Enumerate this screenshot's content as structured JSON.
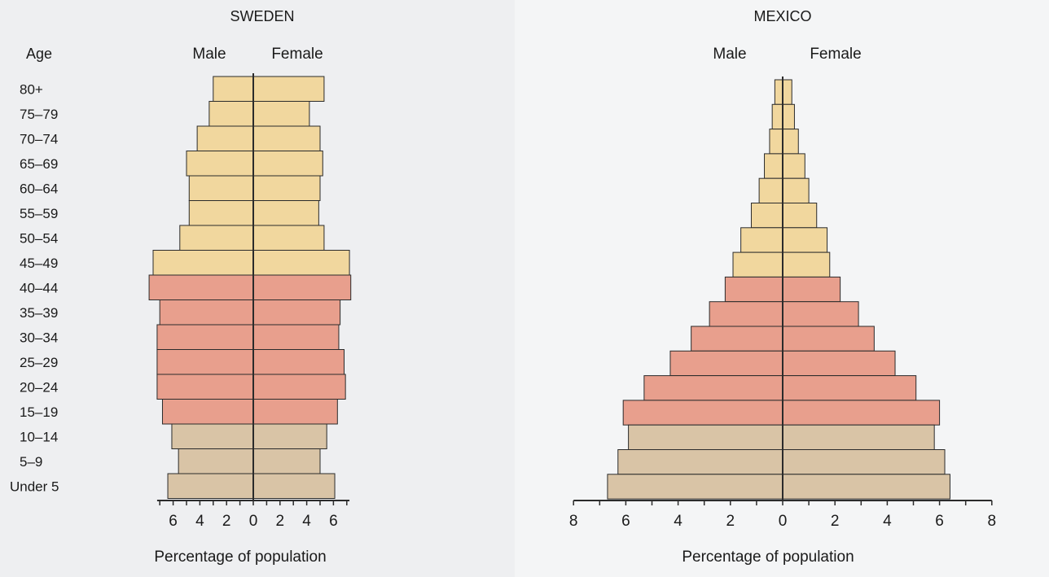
{
  "age_header": "Age",
  "sex_labels": {
    "male": "Male",
    "female": "Female"
  },
  "colors": {
    "old": "#f1d79e",
    "reproductive": "#e89f8d",
    "young": "#d9c4a6",
    "outline": "#2b2b2b"
  },
  "chart_data": [
    {
      "type": "bar",
      "title": "SWEDEN",
      "xlabel": "Percentage of population",
      "ylabel": "Age",
      "categories": [
        "80+",
        "75–79",
        "70–74",
        "65–69",
        "60–64",
        "55–59",
        "50–54",
        "45–49",
        "40–44",
        "35–39",
        "30–34",
        "25–29",
        "20–24",
        "15–19",
        "10–14",
        "5–9",
        "Under 5"
      ],
      "age_groups": [
        "old",
        "old",
        "old",
        "old",
        "old",
        "old",
        "old",
        "old",
        "reproductive",
        "reproductive",
        "reproductive",
        "reproductive",
        "reproductive",
        "reproductive",
        "young",
        "young",
        "young"
      ],
      "series": [
        {
          "name": "Male",
          "values": [
            3.0,
            3.3,
            4.2,
            5.0,
            4.8,
            4.8,
            5.5,
            7.5,
            7.8,
            7.0,
            7.2,
            7.2,
            7.2,
            6.8,
            6.1,
            5.6,
            6.4
          ]
        },
        {
          "name": "Female",
          "values": [
            5.3,
            4.2,
            5.0,
            5.2,
            5.0,
            4.9,
            5.3,
            7.2,
            7.3,
            6.5,
            6.4,
            6.8,
            6.9,
            6.3,
            5.5,
            5.0,
            6.1
          ]
        }
      ],
      "xlim": [
        -8,
        8
      ],
      "xticks": [
        -6,
        -4,
        -2,
        0,
        2,
        4,
        6
      ],
      "xtick_labels": [
        "6",
        "4",
        "2",
        "0",
        "2",
        "4",
        "6"
      ]
    },
    {
      "type": "bar",
      "title": "MEXICO",
      "xlabel": "Percentage of population",
      "categories": [
        "80+",
        "75–79",
        "70–74",
        "65–69",
        "60–64",
        "55–59",
        "50–54",
        "45–49",
        "40–44",
        "35–39",
        "30–34",
        "25–29",
        "20–24",
        "15–19",
        "10–14",
        "5–9",
        "Under 5"
      ],
      "age_groups": [
        "old",
        "old",
        "old",
        "old",
        "old",
        "old",
        "old",
        "old",
        "reproductive",
        "reproductive",
        "reproductive",
        "reproductive",
        "reproductive",
        "reproductive",
        "young",
        "young",
        "young"
      ],
      "series": [
        {
          "name": "Male",
          "values": [
            0.3,
            0.4,
            0.5,
            0.7,
            0.9,
            1.2,
            1.6,
            1.9,
            2.2,
            2.8,
            3.5,
            4.3,
            5.3,
            6.1,
            5.9,
            6.3,
            6.7
          ]
        },
        {
          "name": "Female",
          "values": [
            0.35,
            0.45,
            0.6,
            0.85,
            1.0,
            1.3,
            1.7,
            1.8,
            2.2,
            2.9,
            3.5,
            4.3,
            5.1,
            6.0,
            5.8,
            6.2,
            6.4
          ]
        }
      ],
      "xlim": [
        -8,
        8
      ],
      "xticks": [
        -8,
        -6,
        -4,
        -2,
        0,
        2,
        4,
        6,
        8
      ],
      "xtick_labels": [
        "8",
        "6",
        "4",
        "2",
        "0",
        "2",
        "4",
        "6",
        "8"
      ]
    }
  ]
}
